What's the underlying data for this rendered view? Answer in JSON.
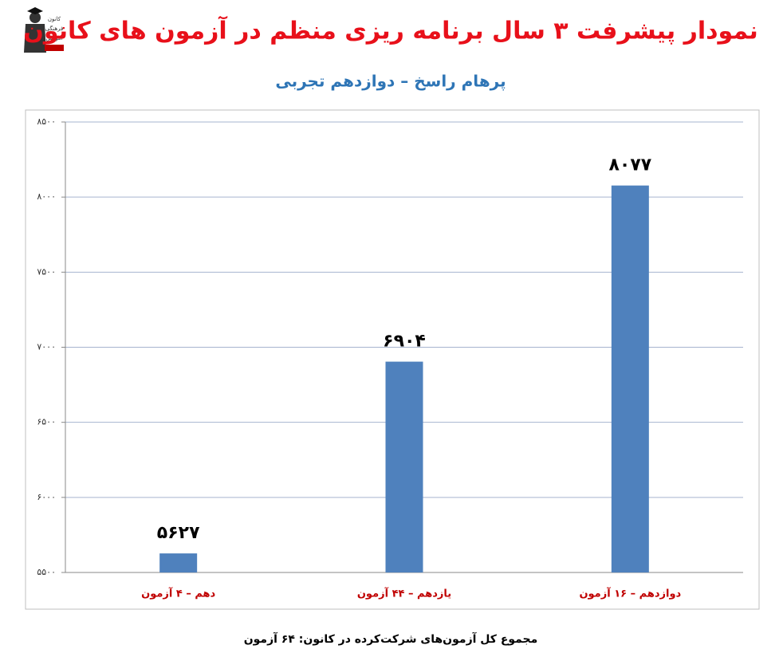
{
  "logo": {
    "lines": [
      "کانون",
      "فرهنگی",
      "آموزش"
    ]
  },
  "chart_data": {
    "type": "bar",
    "title": "نمودار پیشرفت ۳ سال برنامه ریزی منظم در آزمون های کانون",
    "subtitle": "پرهام راسخ – دوازدهم تجربی",
    "categories": [
      "دهم – ۴ آزمون",
      "یازدهم – ۴۴ آزمون",
      "دوازدهم – ۱۶ آزمون"
    ],
    "values": [
      5627,
      6904,
      8077
    ],
    "value_labels": [
      "۵۶۲۷",
      "۶۹۰۴",
      "۸۰۷۷"
    ],
    "color": "#4f81bd",
    "ylim": [
      5500,
      8500
    ],
    "yticks": [
      {
        "value": 5500,
        "label": "۵۵۰۰"
      },
      {
        "value": 6000,
        "label": "۶۰۰۰"
      },
      {
        "value": 6500,
        "label": "۶۵۰۰"
      },
      {
        "value": 7000,
        "label": "۷۰۰۰"
      },
      {
        "value": 7500,
        "label": "۷۵۰۰"
      },
      {
        "value": 8000,
        "label": "۸۰۰۰"
      },
      {
        "value": 8500,
        "label": "۸۵۰۰"
      }
    ],
    "grid": true,
    "footnote": "مجموع کل آزمون‌های شرکت‌کرده در کانون: ۶۴ آزمون"
  }
}
